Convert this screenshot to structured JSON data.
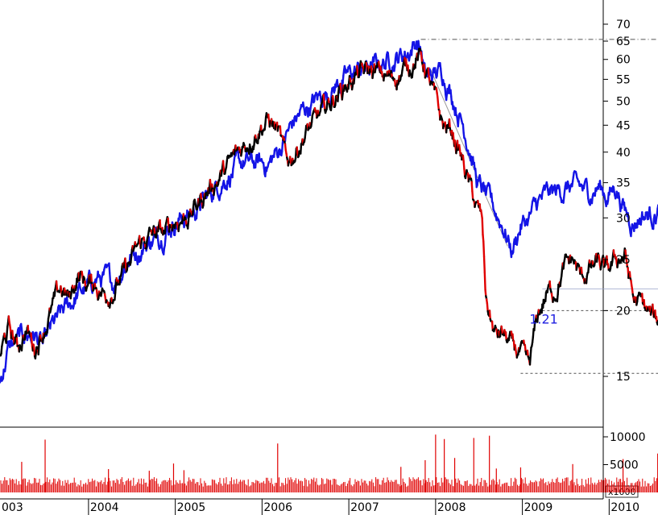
{
  "chart_data": [
    {
      "type": "line",
      "title": "",
      "xlabel": "",
      "ylabel": "",
      "yscale": "log",
      "ylim": [
        13.5,
        80
      ],
      "xlim": [
        2003.0,
        2010.75
      ],
      "yticks": [
        15,
        20,
        25,
        30,
        35,
        40,
        45,
        50,
        55,
        60,
        65,
        70
      ],
      "x_tick_labels": [
        "003",
        "2004",
        "2005",
        "2006",
        "2007",
        "2008",
        "2009",
        "2010"
      ],
      "grid": false,
      "legend": "none",
      "colors": {
        "price_up": "#000000",
        "price_down": "#e00000",
        "comparison": "#1414e6",
        "reference": "#555555"
      },
      "series": [
        {
          "color": "#000000",
          "x": [
            2003.0,
            2003.1,
            2003.2,
            2003.3,
            2003.4,
            2003.5,
            2003.6,
            2003.7,
            2003.8,
            2003.9,
            2004.0,
            2004.1,
            2004.2,
            2004.3,
            2004.4,
            2004.5,
            2004.6,
            2004.7,
            2004.8,
            2004.9,
            2005.0,
            2005.2,
            2005.4,
            2005.6,
            2005.8,
            2006.0,
            2006.1,
            2006.2,
            2006.25,
            2006.3,
            2006.4,
            2006.5,
            2006.7,
            2006.9,
            2007.1,
            2007.3,
            2007.5,
            2007.7,
            2007.8,
            2007.85,
            2007.9,
            2008.0,
            2008.1,
            2008.2,
            2008.3,
            2008.4,
            2008.5,
            2008.55,
            2008.6,
            2008.7,
            2008.8,
            2008.9,
            2009.0,
            2009.1,
            2009.2,
            2009.3,
            2009.4,
            2009.5,
            2009.6,
            2009.7,
            2009.8,
            2009.9,
            2010.0,
            2010.1,
            2010.2,
            2010.3,
            2010.4,
            2010.5,
            2010.6,
            2010.7
          ],
          "y": [
            16.5,
            18.5,
            17.0,
            18.5,
            17.0,
            18.5,
            20.0,
            22.0,
            21.0,
            23.5,
            22.5,
            22.5,
            21.5,
            22.0,
            23.0,
            24.5,
            26.5,
            27.5,
            28.0,
            28.0,
            29.5,
            30.5,
            34.0,
            37.0,
            41.0,
            45.0,
            46.0,
            44.0,
            41.0,
            38.0,
            40.0,
            43.0,
            47.0,
            52.0,
            56.0,
            57.0,
            55.0,
            58.0,
            61.0,
            60.0,
            58.0,
            51.0,
            45.0,
            44.0,
            40.0,
            35.0,
            31.0,
            30.0,
            21.0,
            18.0,
            18.0,
            17.0,
            16.5,
            15.5,
            19.5,
            21.5,
            22.0,
            24.0,
            25.0,
            23.0,
            24.0,
            24.5,
            23.5,
            25.0,
            25.5,
            21.0,
            20.5,
            19.5,
            19.0,
            21.5
          ]
        },
        {
          "color": "#1414e6",
          "x": [
            2003.0,
            2003.1,
            2003.2,
            2003.3,
            2003.4,
            2003.5,
            2003.6,
            2003.7,
            2003.8,
            2003.9,
            2004.0,
            2004.1,
            2004.2,
            2004.3,
            2004.4,
            2004.5,
            2004.6,
            2004.7,
            2004.8,
            2004.9,
            2005.0,
            2005.2,
            2005.4,
            2005.6,
            2005.8,
            2006.0,
            2006.1,
            2006.2,
            2006.3,
            2006.4,
            2006.5,
            2006.7,
            2006.9,
            2007.1,
            2007.3,
            2007.5,
            2007.7,
            2007.8,
            2007.85,
            2007.9,
            2008.0,
            2008.1,
            2008.2,
            2008.3,
            2008.4,
            2008.5,
            2008.6,
            2008.7,
            2008.8,
            2008.9,
            2009.0,
            2009.1,
            2009.2,
            2009.3,
            2009.4,
            2009.5,
            2009.6,
            2009.7,
            2009.8,
            2009.9,
            2010.0,
            2010.1,
            2010.2,
            2010.3,
            2010.4,
            2010.5,
            2010.6,
            2010.7
          ],
          "y": [
            14.5,
            17.0,
            17.5,
            18.0,
            18.0,
            17.0,
            18.5,
            19.5,
            20.5,
            21.5,
            22.0,
            23.0,
            23.0,
            22.5,
            24.0,
            25.5,
            26.0,
            27.0,
            27.5,
            28.5,
            29.5,
            30.5,
            33.0,
            36.0,
            38.0,
            38.0,
            38.0,
            40.0,
            43.0,
            46.0,
            48.0,
            51.0,
            54.0,
            57.0,
            58.0,
            60.0,
            62.0,
            65.0,
            63.0,
            55.0,
            56.0,
            57.0,
            52.0,
            47.0,
            42.0,
            35.0,
            33.0,
            31.0,
            29.0,
            26.0,
            29.0,
            30.0,
            32.0,
            33.0,
            33.5,
            34.0,
            34.5,
            34.0,
            33.5,
            34.5,
            33.0,
            34.5,
            31.0,
            29.5,
            30.5,
            30.5,
            31.0,
            31.5
          ]
        }
      ],
      "reference_lines": [
        {
          "style": "dash-dot",
          "y": 65.5,
          "x_from": 2007.85,
          "x_to": 2010.75
        },
        {
          "style": "dashed",
          "y": 15.2,
          "x_from": 2009.0,
          "x_to": 2010.75
        },
        {
          "style": "dashed",
          "y": 20.0,
          "x_from": 2009.25,
          "x_to": 2010.75
        },
        {
          "style": "solid",
          "y": 22.0,
          "x_from": 2009.25,
          "x_to": 2010.75
        }
      ],
      "trend_lines": [
        {
          "x": [
            2007.95,
            2008.85
          ],
          "y": [
            58.0,
            26.5
          ]
        }
      ],
      "annotations": [
        {
          "text": "1.21",
          "x": 2009.1,
          "y": 19.3,
          "color": "#1f1fe0"
        }
      ]
    },
    {
      "type": "bar",
      "title": "",
      "ylabel": "",
      "unit_label": "x1000",
      "ylim": [
        0,
        11000
      ],
      "yticks": [
        5000,
        10000
      ],
      "bar_color": "#e00000",
      "x_range": [
        2003.0,
        2010.75
      ],
      "typical_volume": 1900,
      "spikes": [
        {
          "x": 2003.25,
          "v": 5500
        },
        {
          "x": 2003.52,
          "v": 9500
        },
        {
          "x": 2004.25,
          "v": 4200
        },
        {
          "x": 2004.72,
          "v": 3900
        },
        {
          "x": 2005.0,
          "v": 5200
        },
        {
          "x": 2005.12,
          "v": 4000
        },
        {
          "x": 2006.2,
          "v": 8800
        },
        {
          "x": 2007.62,
          "v": 4600
        },
        {
          "x": 2007.9,
          "v": 5800
        },
        {
          "x": 2008.02,
          "v": 10400
        },
        {
          "x": 2008.12,
          "v": 9600
        },
        {
          "x": 2008.24,
          "v": 6200
        },
        {
          "x": 2008.46,
          "v": 9800
        },
        {
          "x": 2008.64,
          "v": 10200
        },
        {
          "x": 2008.72,
          "v": 4300
        },
        {
          "x": 2009.0,
          "v": 4500
        },
        {
          "x": 2009.6,
          "v": 5100
        },
        {
          "x": 2010.18,
          "v": 6000
        },
        {
          "x": 2010.58,
          "v": 7000
        }
      ]
    }
  ]
}
